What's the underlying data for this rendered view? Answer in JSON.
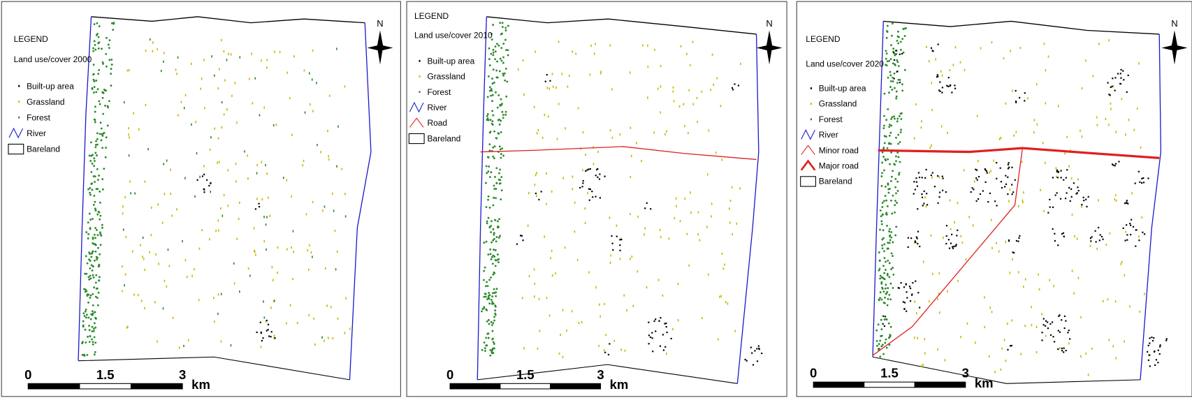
{
  "maps": [
    {
      "legend": {
        "title": "LEGEND",
        "subtitle": "Land use/cover 2000",
        "items": [
          "Built-up area",
          "Grassland",
          "Forest",
          "River",
          "Bareland"
        ]
      },
      "scale": {
        "labels": [
          "0",
          "1.5",
          "3"
        ],
        "unit": "km"
      },
      "north": "N"
    },
    {
      "legend": {
        "title": "LEGEND",
        "subtitle": "Land use/cover 2010",
        "items": [
          "Built-up area",
          "Grassland",
          "Forest",
          "River",
          "Road",
          "Bareland"
        ]
      },
      "scale": {
        "labels": [
          "0",
          "1.5",
          "3"
        ],
        "unit": "km"
      },
      "north": "N"
    },
    {
      "legend": {
        "title": "LEGEND",
        "subtitle": "Land use/cover 2020",
        "items": [
          "Built-up area",
          "Grassland",
          "Forest",
          "River",
          "Minor road",
          "Major road",
          "Bareland"
        ]
      },
      "scale": {
        "labels": [
          "0",
          "1.5",
          "3"
        ],
        "unit": "km"
      },
      "north": "N"
    }
  ]
}
